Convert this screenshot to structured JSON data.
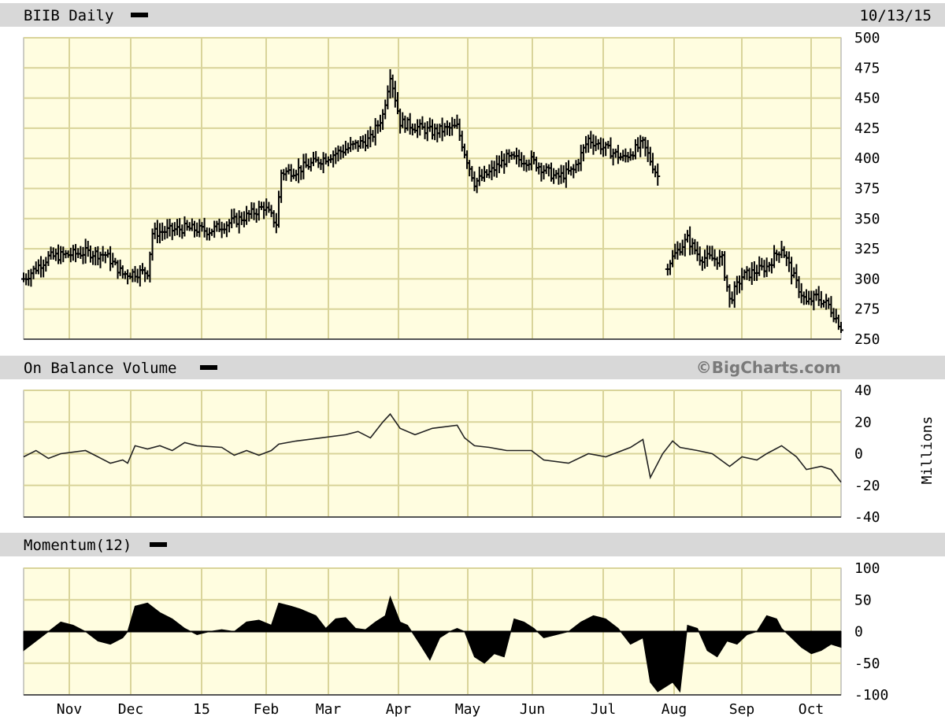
{
  "header": {
    "symbol_label": "BIIB Daily",
    "date": "10/13/15"
  },
  "panels": {
    "obv_label": "On Balance Volume",
    "momentum_label": "Momentum(12)",
    "watermark": "©BigCharts.com",
    "obv_unit": "Millions"
  },
  "colors": {
    "plot_bg": "#fffde0",
    "grid": "#d9d49a",
    "header_bar": "#d8d8d8",
    "series": "#000000"
  },
  "chart_data": [
    {
      "type": "ohlc",
      "title": "BIIB Daily",
      "x_tick_labels": [
        "Nov",
        "Dec",
        "15",
        "Feb",
        "Mar",
        "Apr",
        "May",
        "Jun",
        "Jul",
        "Aug",
        "Sep",
        "Oct"
      ],
      "x_axis": "Oct 2014 – Oct 2015 (daily)",
      "ylim": [
        250,
        500
      ],
      "y_ticks": [
        250,
        275,
        300,
        325,
        350,
        375,
        400,
        425,
        450,
        475,
        500
      ],
      "grid": true,
      "price_path": [
        [
          0,
          300
        ],
        [
          10,
          318
        ],
        [
          25,
          322
        ],
        [
          33,
          320
        ],
        [
          40,
          304
        ],
        [
          50,
          306
        ],
        [
          52,
          338
        ],
        [
          65,
          342
        ],
        [
          75,
          340
        ],
        [
          90,
          352
        ],
        [
          97,
          360
        ],
        [
          102,
          346
        ],
        [
          104,
          388
        ],
        [
          110,
          390
        ],
        [
          128,
          406
        ],
        [
          140,
          416
        ],
        [
          145,
          436
        ],
        [
          148,
          470
        ],
        [
          152,
          430
        ],
        [
          165,
          422
        ],
        [
          175,
          426
        ],
        [
          178,
          405
        ],
        [
          182,
          380
        ],
        [
          188,
          388
        ],
        [
          195,
          400
        ],
        [
          205,
          398
        ],
        [
          215,
          384
        ],
        [
          222,
          390
        ],
        [
          228,
          416
        ],
        [
          235,
          408
        ],
        [
          242,
          400
        ],
        [
          250,
          412
        ],
        [
          256,
          385
        ],
        [
          260,
          312
        ],
        [
          265,
          326
        ],
        [
          268,
          333
        ],
        [
          273,
          318
        ],
        [
          282,
          316
        ],
        [
          285,
          282
        ],
        [
          290,
          302
        ],
        [
          300,
          310
        ],
        [
          306,
          326
        ],
        [
          312,
          296
        ],
        [
          316,
          280
        ],
        [
          320,
          285
        ],
        [
          325,
          278
        ],
        [
          330,
          260
        ]
      ],
      "gap_after_index": 32
    },
    {
      "type": "line",
      "title": "On Balance Volume",
      "ylabel": "Millions",
      "ylim": [
        -40,
        40
      ],
      "y_ticks": [
        -40,
        -20,
        0,
        20,
        40
      ],
      "grid": true,
      "path": [
        [
          0,
          -2
        ],
        [
          5,
          2
        ],
        [
          10,
          -3
        ],
        [
          15,
          0
        ],
        [
          25,
          2
        ],
        [
          30,
          -2
        ],
        [
          35,
          -6
        ],
        [
          40,
          -4
        ],
        [
          42,
          -6
        ],
        [
          45,
          5
        ],
        [
          50,
          3
        ],
        [
          55,
          5
        ],
        [
          60,
          2
        ],
        [
          65,
          7
        ],
        [
          70,
          5
        ],
        [
          80,
          4
        ],
        [
          85,
          -1
        ],
        [
          90,
          2
        ],
        [
          95,
          -1
        ],
        [
          100,
          2
        ],
        [
          103,
          6
        ],
        [
          110,
          8
        ],
        [
          120,
          10
        ],
        [
          130,
          12
        ],
        [
          135,
          14
        ],
        [
          140,
          10
        ],
        [
          145,
          20
        ],
        [
          148,
          25
        ],
        [
          152,
          16
        ],
        [
          158,
          12
        ],
        [
          165,
          16
        ],
        [
          175,
          18
        ],
        [
          178,
          10
        ],
        [
          182,
          5
        ],
        [
          188,
          4
        ],
        [
          195,
          2
        ],
        [
          205,
          2
        ],
        [
          210,
          -4
        ],
        [
          220,
          -6
        ],
        [
          228,
          0
        ],
        [
          235,
          -2
        ],
        [
          245,
          4
        ],
        [
          250,
          9
        ],
        [
          253,
          -15
        ],
        [
          258,
          0
        ],
        [
          262,
          8
        ],
        [
          265,
          4
        ],
        [
          272,
          2
        ],
        [
          278,
          0
        ],
        [
          285,
          -8
        ],
        [
          290,
          -2
        ],
        [
          296,
          -4
        ],
        [
          300,
          0
        ],
        [
          306,
          5
        ],
        [
          312,
          -2
        ],
        [
          316,
          -10
        ],
        [
          322,
          -8
        ],
        [
          326,
          -10
        ],
        [
          330,
          -18
        ]
      ]
    },
    {
      "type": "area",
      "title": "Momentum(12)",
      "ylim": [
        -100,
        100
      ],
      "y_ticks": [
        -100,
        -50,
        0,
        50,
        100
      ],
      "grid": true,
      "baseline": 0,
      "path": [
        [
          0,
          -30
        ],
        [
          5,
          -15
        ],
        [
          10,
          0
        ],
        [
          15,
          15
        ],
        [
          20,
          10
        ],
        [
          25,
          0
        ],
        [
          30,
          -15
        ],
        [
          35,
          -20
        ],
        [
          40,
          -10
        ],
        [
          42,
          0
        ],
        [
          45,
          40
        ],
        [
          50,
          45
        ],
        [
          55,
          30
        ],
        [
          60,
          20
        ],
        [
          65,
          5
        ],
        [
          70,
          -5
        ],
        [
          75,
          0
        ],
        [
          80,
          3
        ],
        [
          85,
          0
        ],
        [
          90,
          15
        ],
        [
          95,
          18
        ],
        [
          100,
          10
        ],
        [
          103,
          45
        ],
        [
          108,
          40
        ],
        [
          112,
          35
        ],
        [
          118,
          25
        ],
        [
          122,
          5
        ],
        [
          126,
          20
        ],
        [
          130,
          22
        ],
        [
          134,
          5
        ],
        [
          138,
          3
        ],
        [
          142,
          15
        ],
        [
          146,
          25
        ],
        [
          148,
          55
        ],
        [
          152,
          15
        ],
        [
          155,
          10
        ],
        [
          160,
          -20
        ],
        [
          164,
          -45
        ],
        [
          168,
          -10
        ],
        [
          172,
          0
        ],
        [
          175,
          5
        ],
        [
          178,
          0
        ],
        [
          182,
          -40
        ],
        [
          186,
          -50
        ],
        [
          190,
          -35
        ],
        [
          194,
          -40
        ],
        [
          198,
          20
        ],
        [
          202,
          15
        ],
        [
          206,
          5
        ],
        [
          210,
          -10
        ],
        [
          215,
          -5
        ],
        [
          220,
          0
        ],
        [
          225,
          15
        ],
        [
          230,
          25
        ],
        [
          235,
          20
        ],
        [
          240,
          5
        ],
        [
          245,
          -20
        ],
        [
          250,
          -10
        ],
        [
          253,
          -80
        ],
        [
          256,
          -95
        ],
        [
          262,
          -80
        ],
        [
          265,
          -95
        ],
        [
          268,
          10
        ],
        [
          272,
          5
        ],
        [
          276,
          -30
        ],
        [
          280,
          -40
        ],
        [
          284,
          -15
        ],
        [
          288,
          -20
        ],
        [
          292,
          -5
        ],
        [
          296,
          0
        ],
        [
          300,
          25
        ],
        [
          304,
          20
        ],
        [
          306,
          5
        ],
        [
          310,
          -10
        ],
        [
          314,
          -25
        ],
        [
          318,
          -35
        ],
        [
          322,
          -30
        ],
        [
          326,
          -20
        ],
        [
          330,
          -25
        ]
      ]
    }
  ]
}
